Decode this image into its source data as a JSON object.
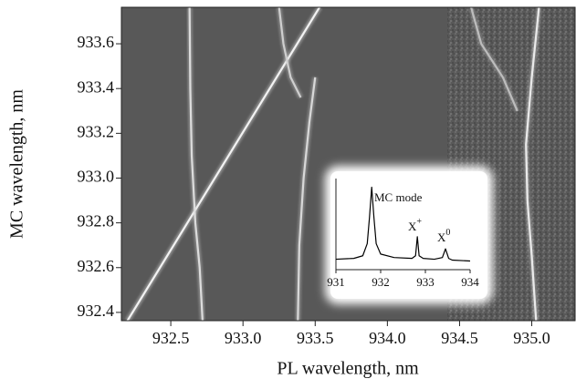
{
  "chart_data": [
    {
      "type": "line",
      "xlabel": "PL wavelength, nm",
      "ylabel": "MC wavelength, nm",
      "xlim": [
        932.158,
        935.3
      ],
      "ylim": [
        932.363,
        933.763
      ],
      "xticks": [
        932.5,
        {
          "value": 933,
          "label": "933.0"
        },
        933.5,
        {
          "value": 934,
          "label": "934.0"
        },
        934.5,
        {
          "value": 935,
          "label": "935.0"
        }
      ],
      "yticks": [
        932.4,
        932.6,
        932.8,
        {
          "value": 933,
          "label": "933.0"
        },
        933.2,
        933.4,
        933.6
      ],
      "series": [
        {
          "color": "#f2f2f2",
          "x": [
            932.2,
            933.53
          ],
          "values": [
            932.363,
            933.763
          ]
        },
        {
          "color": "#dcdcdc",
          "x": [
            932.63,
            932.635,
            932.645,
            932.67,
            932.7,
            932.72
          ],
          "values": [
            933.763,
            933.4,
            933.1,
            932.8,
            932.6,
            932.363
          ]
        },
        {
          "color": "#cfcfcf",
          "x": [
            933.25,
            933.28,
            933.33,
            933.4
          ],
          "values": [
            933.763,
            933.6,
            933.45,
            933.36
          ]
        },
        {
          "color": "#d8d8d8",
          "x": [
            933.5,
            933.46,
            933.42,
            933.39,
            933.38
          ],
          "values": [
            933.45,
            933.25,
            933.0,
            932.7,
            932.363
          ]
        },
        {
          "color": "#eaeaea",
          "x": [
            935.05,
            935.0,
            934.96,
            934.97,
            935.0,
            935.03
          ],
          "values": [
            933.763,
            933.45,
            933.15,
            932.9,
            932.65,
            932.363
          ]
        },
        {
          "color": "#bdbdbd",
          "x": [
            934.58,
            934.65,
            934.8,
            934.9
          ],
          "values": [
            933.763,
            933.6,
            933.45,
            933.3
          ]
        }
      ]
    },
    {
      "type": "line",
      "xlim": [
        931,
        934
      ],
      "ylim": [
        0,
        1.05
      ],
      "xticks": [
        931,
        932,
        933,
        934
      ],
      "series": [
        {
          "color": "#000000",
          "x": [
            931.0,
            931.4,
            931.6,
            931.7,
            931.75,
            931.8,
            931.85,
            931.9,
            932.0,
            932.3,
            932.7,
            932.78,
            932.82,
            932.86,
            932.95,
            933.2,
            933.38,
            933.45,
            933.52,
            933.6,
            934.0
          ],
          "values": [
            0.12,
            0.13,
            0.16,
            0.3,
            0.6,
            0.95,
            0.6,
            0.3,
            0.18,
            0.14,
            0.13,
            0.16,
            0.38,
            0.16,
            0.13,
            0.12,
            0.14,
            0.24,
            0.13,
            0.11,
            0.1
          ]
        }
      ],
      "annotations": [
        {
          "text": "MC mode"
        },
        {
          "text": "X",
          "sup": "+"
        },
        {
          "text": "X",
          "sup": "0"
        }
      ]
    }
  ]
}
